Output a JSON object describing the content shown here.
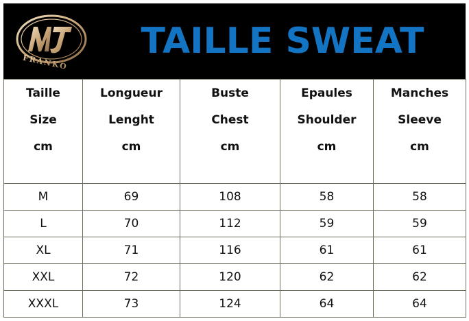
{
  "header": {
    "title": "TAILLE SWEAT",
    "logo": {
      "monogram": "MJ",
      "text": "FRANKO",
      "icon": "mj-franko-logo-icon"
    }
  },
  "colors": {
    "header_bg": "#000000",
    "title": "#1474c4",
    "grid": "#6b6b5a"
  },
  "table": {
    "columns": [
      {
        "line1": "Taille",
        "line2": "Size",
        "line3": "cm"
      },
      {
        "line1": "Longueur",
        "line2": "Lenght",
        "line3": "cm"
      },
      {
        "line1": "Buste",
        "line2": "Chest",
        "line3": "cm"
      },
      {
        "line1": "Epaules",
        "line2": "Shoulder",
        "line3": "cm"
      },
      {
        "line1": "Manches",
        "line2": "Sleeve",
        "line3": "cm"
      }
    ],
    "rows": [
      [
        "M",
        "69",
        "108",
        "58",
        "58"
      ],
      [
        "L",
        "70",
        "112",
        "59",
        "59"
      ],
      [
        "XL",
        "71",
        "116",
        "61",
        "61"
      ],
      [
        "XXL",
        "72",
        "120",
        "62",
        "62"
      ],
      [
        "XXXL",
        "73",
        "124",
        "64",
        "64"
      ]
    ]
  }
}
